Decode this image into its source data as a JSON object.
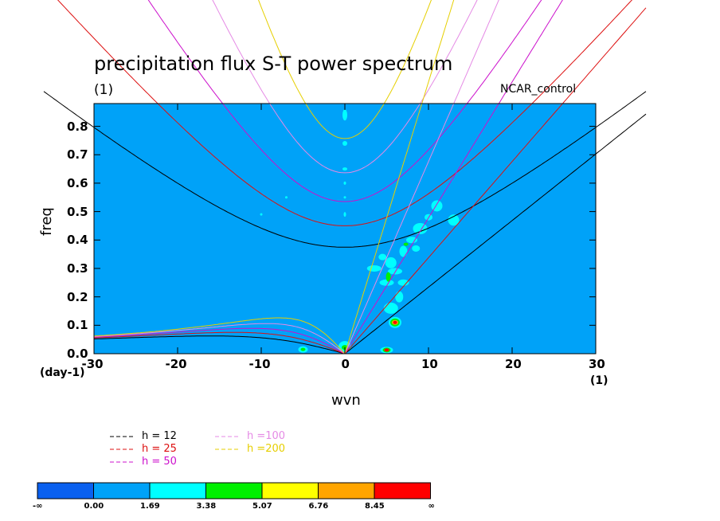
{
  "chart_data": {
    "type": "heatmap",
    "title": "precipitation flux S-T power spectrum",
    "unit_label": "(1)",
    "run_label": "NCAR_control",
    "xlabel": "wvn",
    "ylabel": "freq",
    "x_unit": "(1)",
    "y_unit": "(day-1)",
    "xlim": [
      -30,
      30
    ],
    "ylim": [
      0,
      0.88
    ],
    "x_ticks": [
      "-30",
      "-20",
      "-10",
      "0",
      "10",
      "20",
      "30"
    ],
    "y_ticks": [
      "0.0",
      "0.1",
      "0.2",
      "0.3",
      "0.4",
      "0.5",
      "0.6",
      "0.7",
      "0.8"
    ],
    "background_level_color": "#00a2f8",
    "colorbar": {
      "labels": [
        "-∞",
        "0.00",
        "1.69",
        "3.38",
        "5.07",
        "6.76",
        "8.45",
        "∞"
      ],
      "colors": [
        "#0a60ef",
        "#00a2f8",
        "#00ffff",
        "#00f000",
        "#ffff00",
        "#ffa500",
        "#ff0000"
      ]
    },
    "legend_title": "",
    "dispersion_curves": [
      {
        "label": "h = 12",
        "h": 12,
        "color": "#000000"
      },
      {
        "label": "h = 25",
        "h": 25,
        "color": "#dd1010"
      },
      {
        "label": "h = 50",
        "h": 50,
        "color": "#cc10cc"
      },
      {
        "label": "h =100",
        "h": 100,
        "color": "#e58ae5"
      },
      {
        "label": "h =200",
        "h": 200,
        "color": "#e6cf00"
      }
    ],
    "features": [
      {
        "type": "ridge",
        "x_range": [
          3,
          13
        ],
        "y_range": [
          0.1,
          0.55
        ],
        "level": "1.69-3.38"
      },
      {
        "type": "peak",
        "x": 6,
        "y": 0.11,
        "level": "8.45-inf"
      },
      {
        "type": "peak",
        "x": 5,
        "y": 0.01,
        "level": "8.45-inf"
      },
      {
        "type": "peak",
        "x": -5,
        "y": 0.015,
        "level": "3.38-5.07"
      },
      {
        "type": "peak",
        "x": 0,
        "y": 0.02,
        "level": "3.38-5.07"
      }
    ]
  }
}
